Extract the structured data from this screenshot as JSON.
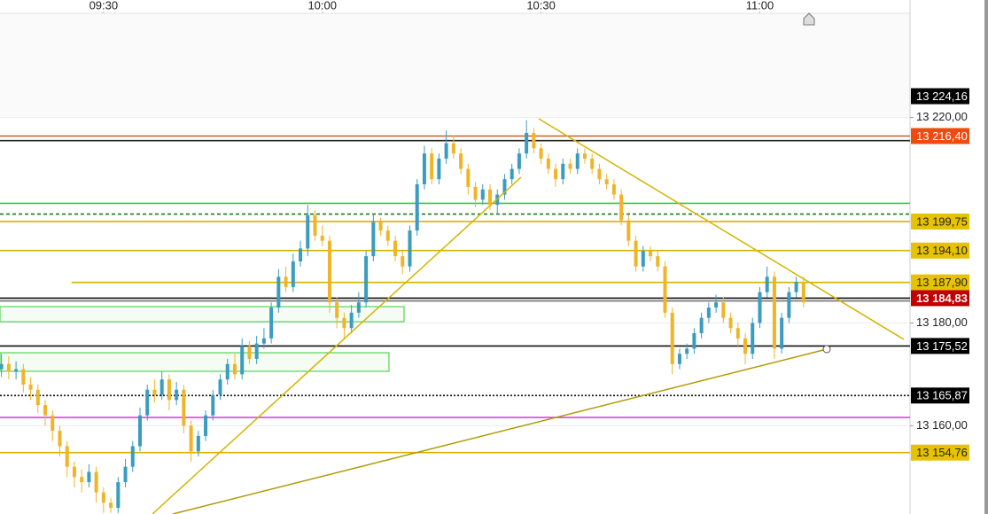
{
  "chart_data": {
    "type": "candlestick",
    "x": [
      16,
      17,
      18,
      19,
      20,
      21,
      22,
      23,
      24,
      25,
      26,
      27,
      28,
      29,
      30,
      31,
      32,
      33,
      34,
      35,
      36,
      37,
      38,
      39,
      40,
      41,
      42,
      43,
      44,
      45,
      46,
      47,
      48,
      49,
      50,
      51,
      52,
      53,
      54,
      55,
      56,
      57,
      58,
      59,
      60,
      61,
      62,
      63,
      64,
      65,
      66,
      67,
      68,
      69,
      70,
      71,
      72,
      73,
      74,
      75,
      76,
      77,
      78,
      79,
      80,
      81,
      82,
      83,
      84,
      85,
      86,
      87,
      88,
      89,
      90,
      91,
      92,
      93,
      94,
      95,
      96,
      97,
      98,
      99,
      100,
      101,
      102,
      103,
      104,
      105,
      106,
      107,
      108,
      109,
      110,
      111,
      112,
      113,
      114,
      115,
      116,
      117,
      118,
      119,
      120,
      121,
      122,
      123,
      124,
      125,
      126
    ],
    "open": [
      13171,
      13172,
      13170.5,
      13171,
      13168,
      13167,
      13164,
      13162,
      13159,
      13156,
      13152,
      13150,
      13149,
      13151,
      13147,
      13145,
      13144,
      13149,
      13152,
      13156,
      13162,
      13167,
      13166,
      13169,
      13165,
      13167,
      13160,
      13155,
      13158,
      13162,
      13166,
      13169,
      13172,
      13170,
      13175.5,
      13173,
      13176,
      13177,
      13183,
      13189,
      13187,
      13192,
      13194.5,
      13201,
      13197,
      13196,
      13184,
      13181,
      13179,
      13182,
      13184,
      13193,
      13199.7,
      13198,
      13196,
      13193,
      13191,
      13198,
      13207,
      13213,
      13208,
      13212,
      13215,
      13213,
      13210,
      13206.5,
      13204,
      13206,
      13203,
      13205,
      13208,
      13210,
      13213,
      13217,
      13214,
      13212,
      13210,
      13208,
      13211,
      13210,
      13213,
      13212,
      13210,
      13208,
      13207,
      13205,
      13200,
      13196,
      13191,
      13194,
      13193,
      13191,
      13182,
      13172,
      13174,
      13175,
      13178,
      13181,
      13183,
      13184,
      13181,
      13179,
      13177,
      13174,
      13180,
      13186,
      13189,
      13175,
      13181,
      13186,
      13188
    ],
    "high": [
      13174,
      13173.5,
      13172.5,
      13172,
      13169.5,
      13168,
      13165,
      13163,
      13160,
      13157,
      13153,
      13151.5,
      13152.5,
      13152,
      13148,
      13146,
      13150,
      13153.5,
      13157,
      13163.5,
      13168,
      13169,
      13170.5,
      13170,
      13168.5,
      13168,
      13161,
      13159,
      13163,
      13167,
      13170,
      13173,
      13174,
      13177,
      13176.5,
      13177.5,
      13179,
      13184,
      13190.5,
      13191,
      13193.5,
      13196,
      13203,
      13202,
      13199,
      13197,
      13185,
      13182,
      13183.5,
      13186,
      13194,
      13201,
      13200.5,
      13199,
      13197,
      13194,
      13199,
      13208,
      13214.5,
      13214,
      13213,
      13217.5,
      13216.5,
      13214,
      13211,
      13207.5,
      13207,
      13207,
      13206,
      13209,
      13211,
      13214,
      13219.5,
      13218,
      13215,
      13213,
      13211,
      13212,
      13212,
      13214,
      13214,
      13213,
      13211,
      13209,
      13208,
      13206,
      13201,
      13197,
      13195,
      13195,
      13194,
      13192,
      13183,
      13175,
      13176,
      13179,
      13182,
      13184,
      13185.5,
      13185,
      13182,
      13180,
      13178,
      13181,
      13187,
      13191,
      13190,
      13182,
      13187,
      13189,
      13189
    ],
    "low": [
      13169.5,
      13169,
      13169,
      13166.5,
      13165,
      13162.5,
      13160,
      13157,
      13154,
      13150,
      13148,
      13147,
      13148,
      13145,
      13143,
      13143,
      13143,
      13148,
      13151,
      13155,
      13161,
      13164.5,
      13165,
      13163,
      13164,
      13158.5,
      13153,
      13154,
      13157,
      13161,
      13165,
      13168,
      13169,
      13169,
      13172,
      13172,
      13175,
      13176,
      13182,
      13186,
      13186,
      13191,
      13193,
      13196,
      13195,
      13182,
      13179,
      13177,
      13178,
      13181,
      13183,
      13192,
      13197,
      13195,
      13192,
      13189.5,
      13190,
      13197,
      13206,
      13207,
      13207,
      13211,
      13212,
      13209,
      13205,
      13202.5,
      13203,
      13202,
      13201,
      13204,
      13207,
      13209,
      13212,
      13213,
      13211,
      13209,
      13206.5,
      13207,
      13209,
      13209,
      13211,
      13209,
      13207,
      13206,
      13204,
      13199,
      13195,
      13190,
      13190,
      13192,
      13190,
      13181,
      13170,
      13171,
      13173,
      13174,
      13177,
      13180,
      13182,
      13180,
      13178,
      13175.5,
      13172,
      13173,
      13179,
      13185,
      13173,
      13174,
      13180,
      13185,
      13183
    ],
    "close": [
      13172,
      13170.5,
      13171,
      13168,
      13167,
      13164,
      13162,
      13159,
      13156,
      13152,
      13150,
      13149,
      13151,
      13147,
      13145,
      13144,
      13149,
      13152,
      13156,
      13162,
      13167,
      13166,
      13169,
      13165,
      13167,
      13160,
      13155,
      13158,
      13162,
      13166,
      13169,
      13172,
      13170,
      13175.5,
      13173,
      13176,
      13177,
      13183,
      13189,
      13187,
      13192,
      13194.5,
      13201,
      13197,
      13196,
      13184,
      13181,
      13179,
      13182,
      13184,
      13193,
      13199.7,
      13198,
      13196,
      13193,
      13191,
      13198,
      13207,
      13213,
      13208,
      13212,
      13215,
      13213,
      13210,
      13206.5,
      13204,
      13206,
      13203,
      13205,
      13208,
      13210,
      13213,
      13217,
      13214,
      13212,
      13210,
      13208,
      13211,
      13210,
      13213,
      13212,
      13210,
      13208,
      13207,
      13205,
      13200,
      13196,
      13191,
      13194,
      13193,
      13191,
      13182,
      13172,
      13174,
      13175,
      13178,
      13181,
      13183,
      13184,
      13181,
      13179,
      13177,
      13174,
      13180,
      13186,
      13189,
      13175,
      13181,
      13186,
      13188,
      13184
    ],
    "up_color": "#3a9cc0",
    "down_color": "#f0b429",
    "xlim": [
      15.8,
      140.6
    ],
    "xticks": [
      {
        "value": 30,
        "label": "09:30"
      },
      {
        "value": 60,
        "label": "10:00"
      },
      {
        "value": 90,
        "label": "10:30"
      },
      {
        "value": 120,
        "label": "11:00"
      }
    ],
    "ylim": [
      13142.8,
      13240.3
    ],
    "yticks": [
      {
        "value": 13220,
        "label": "13 220,00"
      },
      {
        "value": 13180,
        "label": "13 180,00"
      },
      {
        "value": 13160,
        "label": "13 160,00"
      }
    ],
    "grid": true,
    "levels": [
      {
        "value": 13224.16,
        "label": "13 224,16",
        "label_bg": "#000000",
        "label_color": "#ffffff"
      },
      {
        "value": 13216.4,
        "label": "13 216,40",
        "line_color": "#c8602a",
        "label_bg": "#f04a10",
        "label_color": "#ffffff"
      },
      {
        "value": 13215.5,
        "line_color": "#222222"
      },
      {
        "value": 13203.3,
        "line_color": "#33cc33"
      },
      {
        "value": 13201.2,
        "line_color": "#1a7a1a",
        "dash": "4 3"
      },
      {
        "value": 13199.75,
        "label": "13 199,75",
        "line_color": "#d4b400",
        "label_bg": "#e6c200",
        "label_color": "#222222"
      },
      {
        "value": 13194.1,
        "label": "13 194,10",
        "line_color": "#d4b400",
        "label_bg": "#e6c200",
        "label_color": "#222222"
      },
      {
        "value": 13187.9,
        "label": "13 187,90",
        "line_color": "#d4b400",
        "label_bg": "#e6c200",
        "label_color": "#222222",
        "from": 25.6
      },
      {
        "value": 13184.83,
        "label": "13 184,83",
        "line_color": "#111111",
        "label_bg": "#c00000",
        "label_color": "#ffffff",
        "bold": true
      },
      {
        "value": 13184.3,
        "line_color": "#777777"
      },
      {
        "value": 13175.52,
        "label": "13 175,52",
        "line_color": "#111111",
        "label_bg": "#000000",
        "label_color": "#ffffff"
      },
      {
        "value": 13165.87,
        "label": "13 165,87",
        "line_color": "#111111",
        "label_bg": "#000000",
        "label_color": "#ffffff",
        "dash": "2 2"
      },
      {
        "value": 13161.6,
        "line_color": "#e040e0"
      },
      {
        "value": 13154.76,
        "label": "13 154,76",
        "line_color": "#d4b400",
        "label_bg": "#e6c200",
        "label_color": "#222222"
      }
    ]
  }
}
